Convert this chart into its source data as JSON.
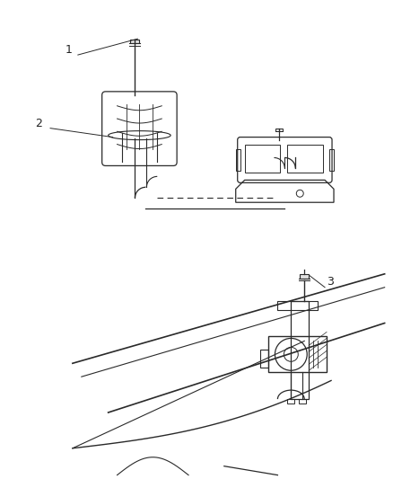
{
  "background_color": "#ffffff",
  "figure_width": 4.38,
  "figure_height": 5.33,
  "dpi": 100,
  "line_color": "#2a2a2a",
  "label1": "1",
  "label2": "2",
  "label3": "3"
}
